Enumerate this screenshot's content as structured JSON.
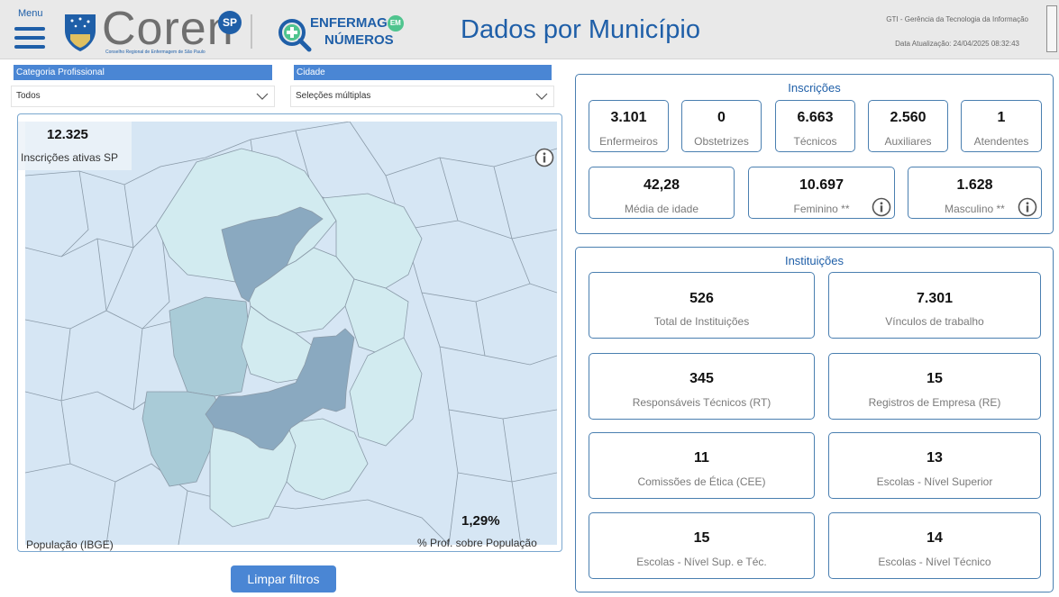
{
  "header": {
    "menu_label": "Menu",
    "logo_text": "Coren",
    "logo_badge": "SP",
    "logo_subtitle": "Conselho Regional de Enfermagem de São Paulo",
    "enf_line1": "ENFERMAG",
    "enf_em": "EM",
    "enf_line2": "NÚMEROS",
    "page_title": "Dados por Município",
    "gti": "GTI - Gerência da Tecnologia da Informação",
    "update": "Data Atualização: 24/04/2025 08:32:43"
  },
  "filters": {
    "categoria": {
      "label": "Categoria Profissional",
      "value": "Todos"
    },
    "cidade": {
      "label": "Cidade",
      "value": "Seleções múltiplas"
    }
  },
  "map": {
    "total_value": "12.325",
    "total_label": "Inscrições ativas SP",
    "pct_value": "1,29%",
    "pct_label": "% Prof. sobre População",
    "pop_label": "População (IBGE)",
    "colors": {
      "background": "#d6e6f4",
      "light": "#d2ebf0",
      "mid": "#a9cbd7",
      "dark": "#8aa9c0",
      "border": "#8a9aa8"
    }
  },
  "clear_button": "Limpar filtros",
  "inscricoes": {
    "title": "Inscrições",
    "row1": [
      {
        "value": "3.101",
        "label": "Enfermeiros"
      },
      {
        "value": "0",
        "label": "Obstetrizes"
      },
      {
        "value": "6.663",
        "label": "Técnicos"
      },
      {
        "value": "2.560",
        "label": "Auxiliares"
      },
      {
        "value": "1",
        "label": "Atendentes"
      }
    ],
    "row2": [
      {
        "value": "42,28",
        "label": "Média de idade"
      },
      {
        "value": "10.697",
        "label": "Feminino **"
      },
      {
        "value": "1.628",
        "label": "Masculino **"
      }
    ]
  },
  "instituicoes": {
    "title": "Instituições",
    "cards": [
      {
        "value": "526",
        "label": "Total de Instituições"
      },
      {
        "value": "7.301",
        "label": "Vínculos de trabalho"
      },
      {
        "value": "345",
        "label": "Responsáveis Técnicos (RT)"
      },
      {
        "value": "15",
        "label": "Registros de Empresa (RE)"
      },
      {
        "value": "11",
        "label": "Comissões de Ética (CEE)"
      },
      {
        "value": "13",
        "label": "Escolas - Nível Superior"
      },
      {
        "value": "15",
        "label": "Escolas - Nível Sup. e Téc."
      },
      {
        "value": "14",
        "label": "Escolas - Nível Técnico"
      }
    ]
  },
  "accent_color": "#1f5fa8"
}
